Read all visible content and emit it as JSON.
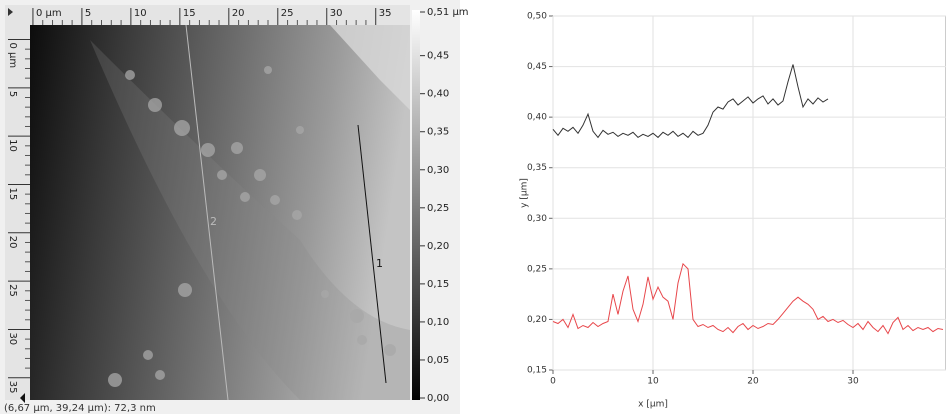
{
  "chart_data": [
    {
      "type": "image",
      "xlim": [
        -0.3,
        38.5
      ],
      "xticks": [
        {
          "value": 0,
          "label": "0 µm"
        },
        5,
        10,
        15,
        20,
        25,
        30,
        35
      ],
      "ylim": [
        -1.5,
        37.3
      ],
      "yticks": [
        {
          "value": 0,
          "label": "0 µm"
        },
        5,
        10,
        15,
        20,
        25,
        30,
        35
      ],
      "zlim": [
        0,
        0.51
      ],
      "zticks": [
        {
          "value": 0.51,
          "label": "0,51 µm"
        },
        {
          "value": 0.45,
          "label": "0,45"
        },
        {
          "value": 0.4,
          "label": "0,40"
        },
        {
          "value": 0.35,
          "label": "0,35"
        },
        {
          "value": 0.3,
          "label": "0,30"
        },
        {
          "value": 0.25,
          "label": "0,25"
        },
        {
          "value": 0.2,
          "label": "0,20"
        },
        {
          "value": 0.15,
          "label": "0,15"
        },
        {
          "value": 0.1,
          "label": "0,10"
        },
        {
          "value": 0.05,
          "label": "0,05"
        },
        {
          "value": 0,
          "label": "0,00"
        }
      ],
      "profiles": [
        "1",
        "2"
      ],
      "status": "(6,67 µm, 39,24 µm): 72,3 nm"
    },
    {
      "type": "line",
      "xlabel": "x [µm]",
      "ylabel": "y [µm]",
      "xlim": [
        0,
        39.3
      ],
      "xticks": [
        0,
        10,
        20,
        30
      ],
      "ylim": [
        0.15,
        0.5
      ],
      "yticks": [
        {
          "value": 0.15,
          "label": "0,15"
        },
        {
          "value": 0.2,
          "label": "0,20"
        },
        {
          "value": 0.25,
          "label": "0,25"
        },
        {
          "value": 0.3,
          "label": "0,30"
        },
        {
          "value": 0.35,
          "label": "0,35"
        },
        {
          "value": 0.4,
          "label": "0,40"
        },
        {
          "value": 0.45,
          "label": "0,45"
        },
        {
          "value": 0.5,
          "label": "0,50"
        }
      ],
      "grid": true,
      "x": [
        0,
        0.5,
        1,
        1.5,
        2,
        2.5,
        3,
        3.5,
        4,
        4.5,
        5,
        5.5,
        6,
        6.5,
        7,
        7.5,
        8,
        8.5,
        9,
        9.5,
        10,
        10.5,
        11,
        11.5,
        12,
        12.5,
        13,
        13.5,
        14,
        14.5,
        15,
        15.5,
        16,
        16.5,
        17,
        17.5,
        18,
        18.5,
        19,
        19.5,
        20,
        20.5,
        21,
        21.5,
        22,
        22.5,
        23,
        23.5,
        24,
        24.5,
        25,
        25.5,
        26,
        26.5,
        27,
        27.5,
        28,
        28.5,
        29,
        29.5,
        30,
        30.5,
        31,
        31.5,
        32,
        32.5,
        33,
        33.5,
        34,
        34.5,
        35,
        35.5,
        36,
        36.5,
        37,
        37.5,
        38,
        38.5,
        39
      ],
      "series": [
        {
          "color": "#333333",
          "values": [
            0.388,
            0.382,
            0.389,
            0.386,
            0.39,
            0.384,
            0.392,
            0.403,
            0.386,
            0.38,
            0.387,
            0.383,
            0.385,
            0.381,
            0.384,
            0.382,
            0.385,
            0.38,
            0.383,
            0.381,
            0.384,
            0.38,
            0.385,
            0.382,
            0.386,
            0.381,
            0.384,
            0.38,
            0.386,
            0.382,
            0.384,
            0.392,
            0.405,
            0.41,
            0.408,
            0.415,
            0.418,
            0.412,
            0.416,
            0.42,
            0.414,
            0.418,
            0.421,
            0.413,
            0.418,
            0.412,
            0.416,
            0.435,
            0.452,
            0.43,
            0.41,
            0.418,
            0.413,
            0.419,
            0.415,
            0.418,
            null,
            null,
            null,
            null,
            null,
            null,
            null,
            null,
            null,
            null,
            null,
            null,
            null,
            null,
            null,
            null,
            null,
            null,
            null,
            null,
            null,
            null,
            null
          ]
        },
        {
          "color": "#e8474b",
          "values": [
            0.198,
            0.196,
            0.2,
            0.192,
            0.205,
            0.191,
            0.194,
            0.192,
            0.197,
            0.193,
            0.196,
            0.198,
            0.225,
            0.205,
            0.228,
            0.243,
            0.21,
            0.198,
            0.215,
            0.242,
            0.22,
            0.232,
            0.222,
            0.218,
            0.2,
            0.236,
            0.255,
            0.25,
            0.2,
            0.193,
            0.195,
            0.192,
            0.194,
            0.19,
            0.188,
            0.192,
            0.187,
            0.193,
            0.196,
            0.19,
            0.194,
            0.191,
            0.193,
            0.196,
            0.195,
            0.2,
            0.206,
            0.212,
            0.218,
            0.222,
            0.218,
            0.215,
            0.21,
            0.2,
            0.203,
            0.198,
            0.2,
            0.197,
            0.199,
            0.195,
            0.192,
            0.196,
            0.19,
            0.198,
            0.192,
            0.188,
            0.194,
            0.186,
            0.197,
            0.202,
            0.19,
            0.194,
            0.189,
            0.192,
            0.19,
            0.192,
            0.188,
            0.191,
            0.19
          ]
        }
      ]
    }
  ]
}
